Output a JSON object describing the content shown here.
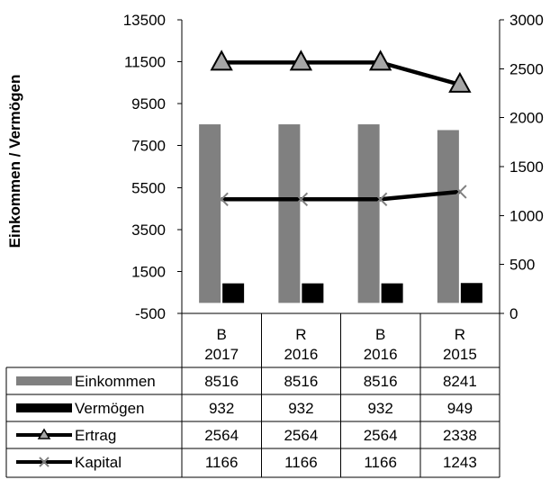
{
  "chart_data": {
    "type": "bar",
    "categories": [
      [
        "B",
        "2017"
      ],
      [
        "R",
        "2016"
      ],
      [
        "B",
        "2016"
      ],
      [
        "R",
        "2015"
      ]
    ],
    "ylabel": "Einkommen / Vermögen",
    "y_left": {
      "lim": [
        -500,
        13500
      ],
      "ticks": [
        "13500",
        "11500",
        "9500",
        "7500",
        "5500",
        "3500",
        "1500",
        "-500"
      ]
    },
    "y_right": {
      "lim": [
        0,
        3000
      ],
      "ticks": [
        "3000",
        "2500",
        "2000",
        "1500",
        "1000",
        "500",
        "0"
      ]
    },
    "series": [
      {
        "name": "Einkommen",
        "kind": "bar",
        "axis": "left",
        "color": "#808080",
        "values": [
          8516,
          8516,
          8516,
          8241
        ]
      },
      {
        "name": "Vermögen",
        "kind": "bar",
        "axis": "left",
        "color": "#000000",
        "values": [
          932,
          932,
          932,
          949
        ]
      },
      {
        "name": "Ertrag",
        "kind": "line",
        "axis": "right",
        "marker": "triangle",
        "color": "#000000",
        "values": [
          2564,
          2564,
          2564,
          2338
        ]
      },
      {
        "name": "Kapital",
        "kind": "line",
        "axis": "right",
        "marker": "x",
        "color": "#000000",
        "values": [
          1166,
          1166,
          1166,
          1243
        ]
      }
    ],
    "table": [
      [
        "8516",
        "8516",
        "8516",
        "8241"
      ],
      [
        "932",
        "932",
        "932",
        "949"
      ],
      [
        "2564",
        "2564",
        "2564",
        "2338"
      ],
      [
        "1166",
        "1166",
        "1166",
        "1243"
      ]
    ],
    "grid": false,
    "legend": "data-table"
  }
}
